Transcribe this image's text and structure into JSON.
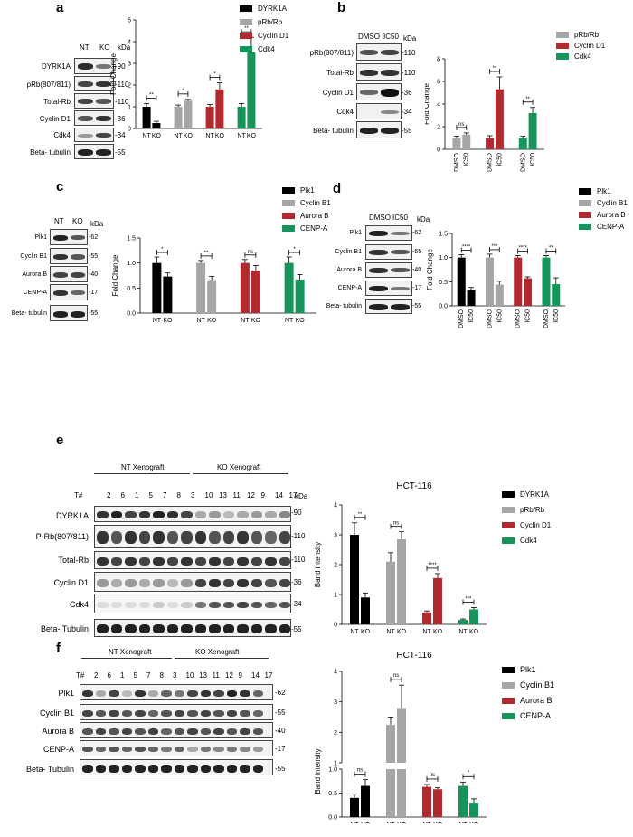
{
  "panels": {
    "a": {
      "label": "a",
      "blot": {
        "lanes": [
          "NT",
          "KO"
        ],
        "kda": "kDa",
        "rows": [
          {
            "name": "DYRK1A",
            "mw": "-90"
          },
          {
            "name": "pRb(807/811)",
            "mw": "-110"
          },
          {
            "name": "Total-Rb",
            "mw": "-110"
          },
          {
            "name": "Cyclin D1",
            "mw": "-36"
          },
          {
            "name": "Cdk4",
            "mw": "-34"
          },
          {
            "name": "Beta- tubulin",
            "mw": "-55"
          }
        ]
      }
    },
    "b": {
      "label": "b",
      "blot": {
        "lanes": [
          "DMSO",
          "IC50"
        ],
        "kda": "kDa",
        "rows": [
          {
            "name": "pRb(807/811)",
            "mw": "-110"
          },
          {
            "name": "Total-Rb",
            "mw": "-110"
          },
          {
            "name": "Cyclin D1",
            "mw": "-36"
          },
          {
            "name": "Cdk4",
            "mw": "-34"
          },
          {
            "name": "Beta- tubulin",
            "mw": "-55"
          }
        ]
      }
    },
    "c": {
      "label": "c",
      "blot": {
        "lanes": [
          "NT",
          "KO"
        ],
        "kda": "kDa",
        "rows": [
          {
            "name": "Plk1",
            "mw": "-62"
          },
          {
            "name": "Cyclin B1",
            "mw": "-55"
          },
          {
            "name": "Aurora B",
            "mw": "-40"
          },
          {
            "name": "CENP-A",
            "mw": "-17"
          },
          {
            "name": "Beta- tubulin",
            "mw": "-55"
          }
        ]
      }
    },
    "d": {
      "label": "d",
      "blot": {
        "lanes": [
          "DMSO",
          "IC50"
        ],
        "kda": "kDa",
        "rows": [
          {
            "name": "Plk1",
            "mw": "-62"
          },
          {
            "name": "Cyclin B1",
            "mw": "-55"
          },
          {
            "name": "Aurora B",
            "mw": "-40"
          },
          {
            "name": "CENP-A",
            "mw": "-17"
          },
          {
            "name": "Beta- tubulin",
            "mw": "-55"
          }
        ]
      }
    },
    "e": {
      "label": "e",
      "group_labels": [
        "NT Xenograft",
        "KO Xenograft"
      ],
      "tnum_label": "T#",
      "lanes": [
        "2",
        "6",
        "1",
        "5",
        "7",
        "8",
        "3",
        "10",
        "13",
        "11",
        "12",
        "9",
        "14",
        "17"
      ],
      "kda": "kDa",
      "rows": [
        {
          "name": "DYRK1A",
          "mw": "-90"
        },
        {
          "name": "P-Rb(807/811)",
          "mw": "-110"
        },
        {
          "name": "Total-Rb",
          "mw": "-110"
        },
        {
          "name": "Cyclin D1",
          "mw": "-36"
        },
        {
          "name": "Cdk4",
          "mw": "-34"
        },
        {
          "name": "Beta- Tubulin",
          "mw": "-55"
        }
      ]
    },
    "f": {
      "label": "f",
      "group_labels": [
        "NT Xenograft",
        "KO Xenograft"
      ],
      "tnum_label": "T#",
      "lanes": [
        "2",
        "6",
        "1",
        "5",
        "7",
        "8",
        "3",
        "10",
        "13",
        "11",
        "12",
        "9",
        "14",
        "17"
      ],
      "rows": [
        {
          "name": "Plk1",
          "mw": "-62"
        },
        {
          "name": "Cyclin B1",
          "mw": "-55"
        },
        {
          "name": "Aurora B",
          "mw": "-40"
        },
        {
          "name": "CENP-A",
          "mw": "-17"
        },
        {
          "name": "Beta- Tubulin",
          "mw": "-55"
        }
      ]
    }
  },
  "colors": {
    "black": "#000000",
    "grey": "#a6a6a6",
    "red": "#b02a30",
    "green": "#16955a"
  },
  "chart_data": [
    {
      "id": "a",
      "type": "bar",
      "title": "",
      "xlabel": "",
      "ylabel": "Fold Change",
      "ylim": [
        0,
        5
      ],
      "yticks": [
        "0",
        "1",
        "2",
        "3",
        "4",
        "5"
      ],
      "legend": [
        {
          "name": "DYRK1A",
          "color": "#000000"
        },
        {
          "name": "pRb/Rb",
          "color": "#a6a6a6"
        },
        {
          "name": "Cyclin D1",
          "color": "#b02a30"
        },
        {
          "name": "Cdk4",
          "color": "#16955a"
        }
      ],
      "groups": [
        {
          "color": "#000000",
          "categories": [
            "NT",
            "KO"
          ],
          "values": [
            1.0,
            0.25
          ],
          "err": [
            0.15,
            0.08
          ],
          "sig": "**"
        },
        {
          "color": "#a6a6a6",
          "categories": [
            "NT",
            "KO"
          ],
          "values": [
            1.0,
            1.28
          ],
          "err": [
            0.08,
            0.06
          ],
          "sig": "*"
        },
        {
          "color": "#b02a30",
          "categories": [
            "NT",
            "KO"
          ],
          "values": [
            1.0,
            1.8
          ],
          "err": [
            0.1,
            0.3
          ],
          "sig": "*"
        },
        {
          "color": "#16955a",
          "categories": [
            "NT",
            "KO"
          ],
          "values": [
            1.0,
            3.5
          ],
          "err": [
            0.15,
            0.7
          ],
          "sig": "**"
        }
      ]
    },
    {
      "id": "b",
      "type": "bar",
      "title": "",
      "xlabel": "",
      "ylabel": "Fold Change",
      "ylim": [
        0,
        8
      ],
      "yticks": [
        "0",
        "2",
        "4",
        "6",
        "8"
      ],
      "legend": [
        {
          "name": "pRb/Rb",
          "color": "#a6a6a6"
        },
        {
          "name": "Cyclin D1",
          "color": "#b02a30"
        },
        {
          "name": "Cdk4",
          "color": "#16955a"
        }
      ],
      "groups": [
        {
          "color": "#a6a6a6",
          "categories": [
            "DMSO",
            "IC50"
          ],
          "values": [
            1.0,
            1.3
          ],
          "err": [
            0.15,
            0.15
          ],
          "sig": "ns"
        },
        {
          "color": "#b02a30",
          "categories": [
            "DMSO",
            "IC50"
          ],
          "values": [
            1.0,
            5.3
          ],
          "err": [
            0.2,
            1.1
          ],
          "sig": "**"
        },
        {
          "color": "#16955a",
          "categories": [
            "DMSO",
            "IC50"
          ],
          "values": [
            1.0,
            3.2
          ],
          "err": [
            0.15,
            0.5
          ],
          "sig": "**"
        }
      ]
    },
    {
      "id": "c",
      "type": "bar",
      "title": "",
      "xlabel": "",
      "ylabel": "Fold Change",
      "ylim": [
        0,
        1.5
      ],
      "yticks": [
        "0.0",
        "0.5",
        "1.0",
        "1.5"
      ],
      "legend": [
        {
          "name": "Plk1",
          "color": "#000000"
        },
        {
          "name": "Cyclin B1",
          "color": "#a6a6a6"
        },
        {
          "name": "Aurora B",
          "color": "#b02a30"
        },
        {
          "name": "CENP-A",
          "color": "#16955a"
        }
      ],
      "groups": [
        {
          "color": "#000000",
          "categories": [
            "NT",
            "KO"
          ],
          "values": [
            1.0,
            0.73
          ],
          "err": [
            0.12,
            0.07
          ],
          "sig": "*"
        },
        {
          "color": "#a6a6a6",
          "categories": [
            "NT",
            "KO"
          ],
          "values": [
            1.0,
            0.66
          ],
          "err": [
            0.05,
            0.07
          ],
          "sig": "**"
        },
        {
          "color": "#b02a30",
          "categories": [
            "NT",
            "KO"
          ],
          "values": [
            1.0,
            0.85
          ],
          "err": [
            0.07,
            0.1
          ],
          "sig": "ns"
        },
        {
          "color": "#16955a",
          "categories": [
            "NT",
            "KO"
          ],
          "values": [
            1.0,
            0.67
          ],
          "err": [
            0.12,
            0.1
          ],
          "sig": "*"
        }
      ]
    },
    {
      "id": "d",
      "type": "bar",
      "title": "",
      "xlabel": "",
      "ylabel": "Fold Change",
      "ylim": [
        0,
        1.5
      ],
      "yticks": [
        "0.0",
        "0.5",
        "1.0",
        "1.5"
      ],
      "legend": [
        {
          "name": "Plk1",
          "color": "#000000"
        },
        {
          "name": "Cyclin B1",
          "color": "#a6a6a6"
        },
        {
          "name": "Aurora B",
          "color": "#b02a30"
        },
        {
          "name": "CENP-A",
          "color": "#16955a"
        }
      ],
      "groups": [
        {
          "color": "#000000",
          "categories": [
            "DMSO",
            "IC50"
          ],
          "values": [
            1.0,
            0.33
          ],
          "err": [
            0.06,
            0.05
          ],
          "sig": "****"
        },
        {
          "color": "#a6a6a6",
          "categories": [
            "DMSO",
            "IC50"
          ],
          "values": [
            1.0,
            0.44
          ],
          "err": [
            0.07,
            0.07
          ],
          "sig": "***"
        },
        {
          "color": "#b02a30",
          "categories": [
            "DMSO",
            "IC50"
          ],
          "values": [
            1.0,
            0.57
          ],
          "err": [
            0.04,
            0.03
          ],
          "sig": "****"
        },
        {
          "color": "#16955a",
          "categories": [
            "DMSO",
            "IC50"
          ],
          "values": [
            1.0,
            0.45
          ],
          "err": [
            0.04,
            0.13
          ],
          "sig": "**"
        }
      ]
    },
    {
      "id": "e",
      "type": "bar",
      "title": "HCT-116",
      "xlabel": "",
      "ylabel": "Band intensity",
      "ylim": [
        0,
        4
      ],
      "yticks": [
        "0",
        "1",
        "2",
        "3",
        "4"
      ],
      "legend": [
        {
          "name": "DYRK1A",
          "color": "#000000"
        },
        {
          "name": "pRb/Rb",
          "color": "#a6a6a6"
        },
        {
          "name": "Cyclin D1",
          "color": "#b02a30"
        },
        {
          "name": "Cdk4",
          "color": "#16955a"
        }
      ],
      "groups": [
        {
          "color": "#000000",
          "categories": [
            "NT",
            "KO"
          ],
          "values": [
            3.0,
            0.9
          ],
          "err": [
            0.4,
            0.15
          ],
          "sig": "**"
        },
        {
          "color": "#a6a6a6",
          "categories": [
            "NT",
            "KO"
          ],
          "values": [
            2.1,
            2.85
          ],
          "err": [
            0.3,
            0.25
          ],
          "sig": "ns"
        },
        {
          "color": "#b02a30",
          "categories": [
            "NT",
            "KO"
          ],
          "values": [
            0.4,
            1.55
          ],
          "err": [
            0.05,
            0.15
          ],
          "sig": "****"
        },
        {
          "color": "#16955a",
          "categories": [
            "NT",
            "KO"
          ],
          "values": [
            0.15,
            0.5
          ],
          "err": [
            0.03,
            0.06
          ],
          "sig": "***"
        }
      ]
    },
    {
      "id": "f",
      "type": "bar",
      "title": "HCT-116",
      "xlabel": "",
      "ylabel": "Band intensity",
      "ylim": [
        0,
        4
      ],
      "yticks": [
        "0.0",
        "0.5",
        "1.0",
        "1",
        "2",
        "3",
        "4"
      ],
      "legend": [
        {
          "name": "Plk1",
          "color": "#000000"
        },
        {
          "name": "Cyclin B1",
          "color": "#a6a6a6"
        },
        {
          "name": "Aurora B",
          "color": "#b02a30"
        },
        {
          "name": "CENP-A",
          "color": "#16955a"
        }
      ],
      "groups": [
        {
          "color": "#000000",
          "categories": [
            "NT",
            "KO"
          ],
          "values": [
            0.4,
            0.65
          ],
          "err": [
            0.08,
            0.13
          ],
          "sig": "ns"
        },
        {
          "color": "#a6a6a6",
          "categories": [
            "NT",
            "KO"
          ],
          "values": [
            2.25,
            2.8
          ],
          "err": [
            0.25,
            0.75
          ],
          "sig": "ns"
        },
        {
          "color": "#b02a30",
          "categories": [
            "NT",
            "KO"
          ],
          "values": [
            0.63,
            0.58
          ],
          "err": [
            0.05,
            0.03
          ],
          "sig": "ns"
        },
        {
          "color": "#16955a",
          "categories": [
            "NT",
            "KO"
          ],
          "values": [
            0.65,
            0.3
          ],
          "err": [
            0.08,
            0.08
          ],
          "sig": "*"
        }
      ]
    }
  ]
}
